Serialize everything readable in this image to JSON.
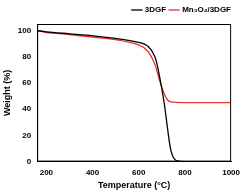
{
  "chart_data": {
    "type": "line",
    "x_label": "Temperature (°C)",
    "y_label": "Weight (%)",
    "xlim": [
      160,
      1000
    ],
    "xticks": [
      200,
      400,
      600,
      800,
      1000
    ],
    "ylim": [
      0,
      105
    ],
    "yticks": [
      0,
      20,
      40,
      60,
      80,
      100
    ],
    "grid": false,
    "legend": "upper right",
    "series": [
      {
        "name": "3DGF",
        "color": "#000000",
        "x": [
          160,
          200,
          300,
          400,
          500,
          600,
          640,
          670,
          690,
          710,
          725,
          740,
          760,
          800,
          900,
          1000
        ],
        "values": [
          100,
          99,
          97.5,
          96,
          94,
          91,
          88,
          80,
          65,
          45,
          25,
          8,
          1,
          0,
          0,
          0
        ]
      },
      {
        "name": "Mn₃O₄/3DGF",
        "color": "#e8322f",
        "x": [
          160,
          200,
          300,
          400,
          500,
          600,
          640,
          670,
          690,
          710,
          725,
          740,
          800,
          900,
          1000
        ],
        "values": [
          100,
          98.5,
          97,
          95,
          93,
          89,
          84,
          74,
          62,
          52,
          47,
          45.5,
          45,
          45,
          45
        ]
      }
    ]
  }
}
